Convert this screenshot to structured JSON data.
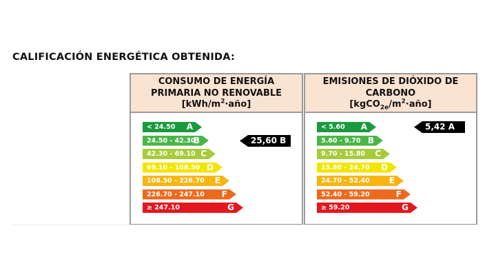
{
  "page": {
    "title": "CALIFICACIÓN ENERGÉTICA OBTENIDA:"
  },
  "colors": {
    "A": "#1a9a3e",
    "B": "#4ab548",
    "C": "#a6cc3c",
    "D": "#f2e500",
    "E": "#f6b512",
    "F": "#ec6a1e",
    "G": "#e2171f",
    "header_bg": "#fbe3d2"
  },
  "consumo": {
    "header_line1": "CONSUMO DE ENERGÍA",
    "header_line2": "PRIMARIA NO RENOVABLE",
    "unit_prefix": "[kWh/m",
    "unit_sup": "2",
    "unit_suffix": "·año]",
    "bars": [
      {
        "range": "< 24.50",
        "letter": "A"
      },
      {
        "range": "24.50 - 42.30",
        "letter": "B"
      },
      {
        "range": "42.30 - 69.10",
        "letter": "C"
      },
      {
        "range": "69.10 - 108.50",
        "letter": "D"
      },
      {
        "range": "108.50 - 226.70",
        "letter": "E"
      },
      {
        "range": "226.70 - 247.10",
        "letter": "F"
      },
      {
        "range": "≥ 247.10",
        "letter": "G"
      }
    ],
    "result": "25,60 B"
  },
  "emisiones": {
    "header_line1": "EMISIONES DE DIÓXIDO DE",
    "header_line2": "CARBONO",
    "unit_prefix": "[kgCO",
    "unit_sub": "2e",
    "unit_mid": "/m",
    "unit_sup": "2",
    "unit_suffix": "·año]",
    "bars": [
      {
        "range": "< 5.60",
        "letter": "A"
      },
      {
        "range": "5.60 - 9.70",
        "letter": "B"
      },
      {
        "range": "9.70 - 15.80",
        "letter": "C"
      },
      {
        "range": "15.80 - 24.70",
        "letter": "D"
      },
      {
        "range": "24.70 - 52.40",
        "letter": "E"
      },
      {
        "range": "52.40 - 59.20",
        "letter": "F"
      },
      {
        "range": "≥ 59.20",
        "letter": "G"
      }
    ],
    "result": "5,42 A"
  }
}
